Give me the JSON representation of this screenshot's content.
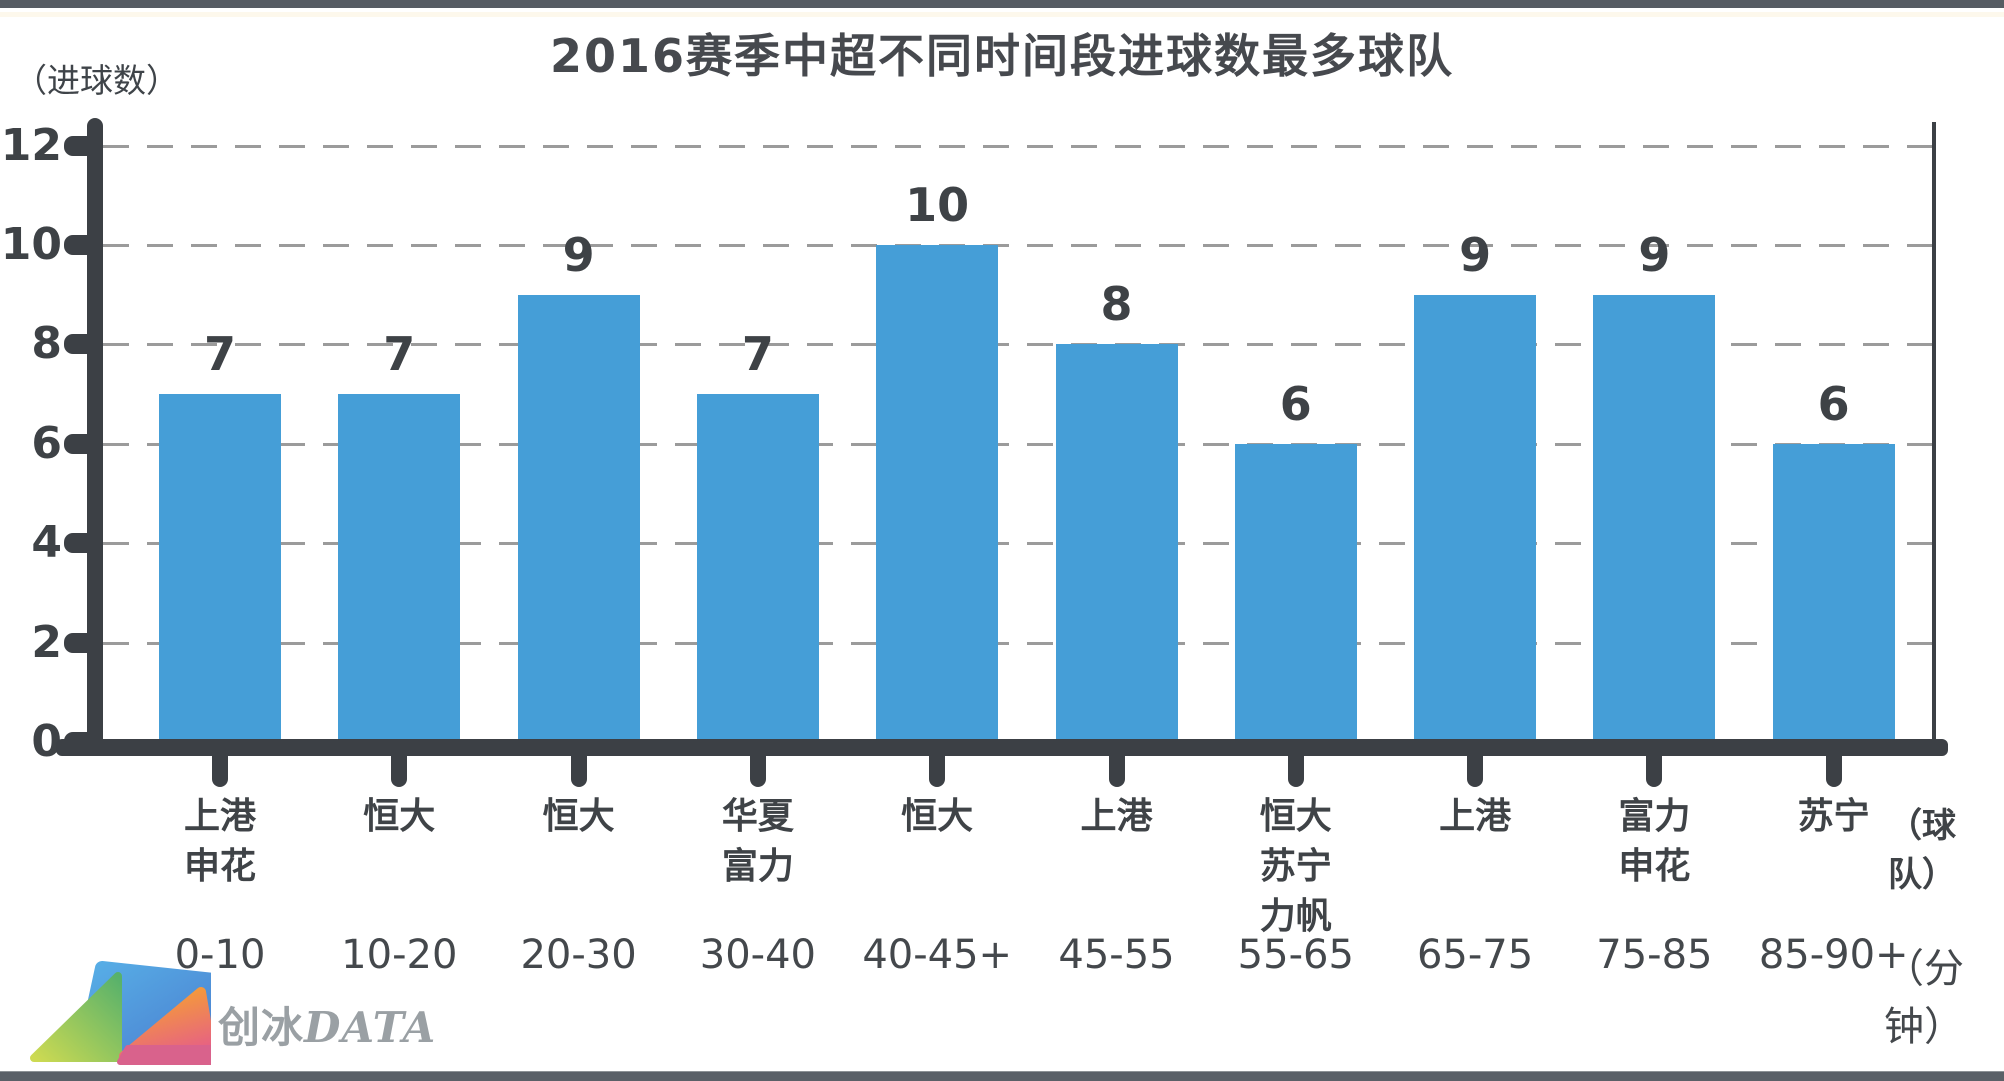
{
  "chart_data": {
    "type": "bar",
    "title": "2016赛季中超不同时间段进球数最多球队",
    "y_axis_unit": "（进球数）",
    "x_axis_unit_team": "（球队）",
    "x_axis_unit_minute": "（分钟）",
    "ylabel": "进球数",
    "ylim": [
      0,
      12
    ],
    "yticks": [
      0,
      2,
      4,
      6,
      8,
      10,
      12
    ],
    "grid": "dashed-horizontal",
    "bar_color": "#459ED7",
    "categories": [
      "0-10",
      "10-20",
      "20-30",
      "30-40",
      "40-45+",
      "45-55",
      "55-65",
      "65-75",
      "75-85",
      "85-90+"
    ],
    "teams": [
      [
        "上港",
        "申花"
      ],
      [
        "恒大"
      ],
      [
        "恒大"
      ],
      [
        "华夏",
        "富力"
      ],
      [
        "恒大"
      ],
      [
        "上港"
      ],
      [
        "恒大",
        "苏宁",
        "力帆"
      ],
      [
        "上港"
      ],
      [
        "富力",
        "申花"
      ],
      [
        "苏宁"
      ]
    ],
    "values": [
      7,
      7,
      9,
      7,
      10,
      8,
      6,
      9,
      9,
      6
    ]
  },
  "watermark": {
    "cn": "创冰",
    "en": "DATA"
  }
}
